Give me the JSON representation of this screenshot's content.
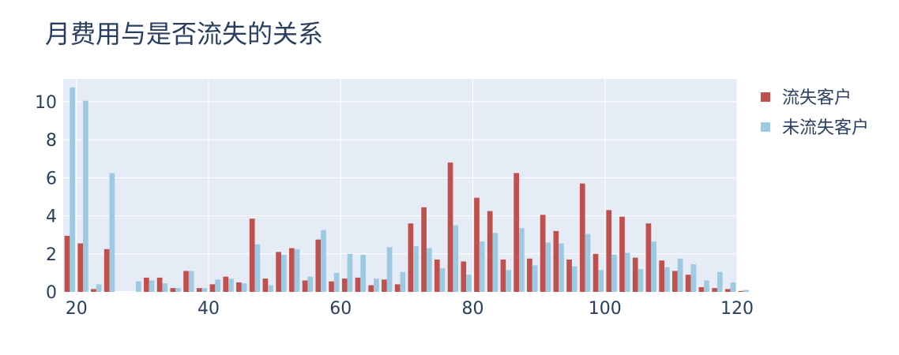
{
  "chart_data": {
    "type": "bar",
    "title": "月费用与是否流失的关系",
    "xlabel": "",
    "ylabel": "",
    "xlim": [
      18,
      120
    ],
    "ylim": [
      0,
      11.2
    ],
    "x_ticks": [
      20,
      40,
      60,
      80,
      100,
      120
    ],
    "y_ticks": [
      0,
      2,
      4,
      6,
      8,
      10
    ],
    "grid": true,
    "legend_position": "top-right",
    "bin_start": 18,
    "bin_width": 2,
    "series": [
      {
        "name": "流失客户",
        "color": "#c0504d",
        "values": [
          2.95,
          2.55,
          0.15,
          2.25,
          0.0,
          0.0,
          0.75,
          0.75,
          0.2,
          1.1,
          0.2,
          0.4,
          0.8,
          0.5,
          3.85,
          0.7,
          2.1,
          2.3,
          0.6,
          2.75,
          0.55,
          0.7,
          0.75,
          0.35,
          0.65,
          0.4,
          3.6,
          4.45,
          1.7,
          6.8,
          1.6,
          4.95,
          4.25,
          1.7,
          6.25,
          1.75,
          4.05,
          3.2,
          1.7,
          5.7,
          2.0,
          4.3,
          3.95,
          1.8,
          3.6,
          1.65,
          1.1,
          0.9,
          0.25,
          0.2,
          0.15,
          0.05
        ]
      },
      {
        "name": "未流失客户",
        "color": "#9ecae1",
        "values": [
          10.75,
          10.05,
          0.4,
          6.25,
          0.0,
          0.55,
          0.6,
          0.45,
          0.2,
          1.1,
          0.2,
          0.65,
          0.7,
          0.45,
          2.5,
          0.35,
          1.95,
          2.25,
          0.8,
          3.25,
          1.0,
          2.0,
          1.95,
          0.7,
          2.35,
          1.05,
          2.4,
          2.3,
          1.25,
          3.5,
          0.9,
          2.65,
          3.1,
          1.15,
          3.35,
          1.4,
          2.6,
          2.55,
          1.35,
          3.05,
          1.15,
          1.95,
          2.05,
          1.2,
          2.65,
          1.3,
          1.75,
          1.45,
          0.6,
          1.05,
          0.5,
          0.1
        ]
      }
    ]
  }
}
